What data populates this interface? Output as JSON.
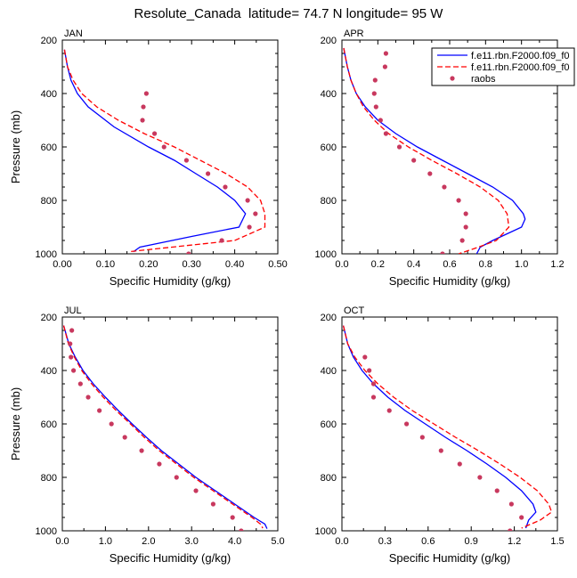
{
  "title": "Resolute_Canada  latitude= 74.7 N longitude= 95 W",
  "legend": {
    "entries": [
      {
        "label": "f.e11.rbn.F2000.f09_f0",
        "color": "#0000ff",
        "style": "solid"
      },
      {
        "label": "f.e11.rbn.F2000.f09_f0",
        "color": "#ff0000",
        "style": "dashed"
      },
      {
        "label": "raobs",
        "color": "#c8385e",
        "style": "marker"
      }
    ]
  },
  "chart_data": [
    {
      "type": "line",
      "panel": "JAN",
      "xlabel": "Specific Humidity (g/kg)",
      "ylabel": "Pressure (mb)",
      "xlim": [
        0,
        0.5
      ],
      "xticks": [
        0.0,
        0.1,
        0.2,
        0.3,
        0.4,
        0.5
      ],
      "xtick_labels": [
        "0.00",
        "0.10",
        "0.20",
        "0.30",
        "0.40",
        "0.50"
      ],
      "ylim": [
        200,
        1000
      ],
      "yticks": [
        200,
        400,
        600,
        800,
        1000
      ],
      "series": [
        {
          "name": "model1",
          "pressure": [
            236,
            300,
            350,
            400,
            450,
            525,
            600,
            650,
            700,
            750,
            800,
            850,
            900,
            935,
            975,
            992
          ],
          "values": [
            0.005,
            0.012,
            0.02,
            0.035,
            0.06,
            0.12,
            0.2,
            0.26,
            0.31,
            0.36,
            0.4,
            0.425,
            0.41,
            0.3,
            0.18,
            0.165
          ]
        },
        {
          "name": "model2",
          "pressure": [
            236,
            300,
            350,
            400,
            450,
            500,
            550,
            600,
            650,
            700,
            750,
            800,
            850,
            900,
            950,
            992
          ],
          "values": [
            0.005,
            0.012,
            0.025,
            0.045,
            0.08,
            0.13,
            0.19,
            0.26,
            0.32,
            0.38,
            0.43,
            0.46,
            0.47,
            0.47,
            0.4,
            0.155
          ]
        },
        {
          "name": "raobs",
          "pressure": [
            400,
            450,
            500,
            550,
            600,
            650,
            700,
            750,
            800,
            850,
            900,
            950,
            1000
          ],
          "values": [
            0.195,
            0.188,
            0.186,
            0.214,
            0.236,
            0.288,
            0.338,
            0.378,
            0.43,
            0.448,
            0.434,
            0.37,
            0.293
          ]
        }
      ]
    },
    {
      "type": "line",
      "panel": "APR",
      "xlabel": "Specific Humidity (g/kg)",
      "ylabel": "",
      "xlim": [
        0,
        1.2
      ],
      "xticks": [
        0.0,
        0.2,
        0.4,
        0.6,
        0.8,
        1.0,
        1.2
      ],
      "xtick_labels": [
        "0.0",
        "0.2",
        "0.4",
        "0.6",
        "0.8",
        "1.0",
        "1.2"
      ],
      "ylim": [
        200,
        1000
      ],
      "yticks": [
        200,
        400,
        600,
        800,
        1000
      ],
      "series": [
        {
          "name": "model1",
          "pressure": [
            230,
            300,
            350,
            400,
            450,
            500,
            550,
            600,
            650,
            700,
            750,
            800,
            850,
            870,
            900,
            950,
            975,
            1000
          ],
          "values": [
            0.01,
            0.03,
            0.05,
            0.08,
            0.13,
            0.2,
            0.3,
            0.42,
            0.56,
            0.7,
            0.84,
            0.95,
            1.01,
            1.02,
            1.0,
            0.84,
            0.77,
            0.75
          ]
        },
        {
          "name": "model2",
          "pressure": [
            230,
            300,
            350,
            400,
            450,
            500,
            550,
            600,
            650,
            700,
            750,
            800,
            850,
            900,
            950,
            975,
            1000
          ],
          "values": [
            0.01,
            0.03,
            0.05,
            0.08,
            0.12,
            0.18,
            0.26,
            0.37,
            0.5,
            0.64,
            0.77,
            0.87,
            0.92,
            0.93,
            0.86,
            0.76,
            0.65
          ]
        },
        {
          "name": "raobs",
          "pressure": [
            250,
            300,
            350,
            400,
            450,
            500,
            550,
            600,
            650,
            700,
            750,
            800,
            850,
            900,
            950,
            1000
          ],
          "values": [
            0.245,
            0.24,
            0.185,
            0.18,
            0.19,
            0.215,
            0.245,
            0.32,
            0.4,
            0.49,
            0.57,
            0.65,
            0.69,
            0.69,
            0.67,
            0.56
          ]
        }
      ]
    },
    {
      "type": "line",
      "panel": "JUL",
      "xlabel": "Specific Humidity (g/kg)",
      "ylabel": "Pressure (mb)",
      "xlim": [
        0,
        5
      ],
      "xticks": [
        0.0,
        1.0,
        2.0,
        3.0,
        4.0,
        5.0
      ],
      "xtick_labels": [
        "0.0",
        "1.0",
        "2.0",
        "3.0",
        "4.0",
        "5.0"
      ],
      "ylim": [
        200,
        1000
      ],
      "yticks": [
        200,
        400,
        600,
        800,
        1000
      ],
      "series": [
        {
          "name": "model1",
          "pressure": [
            232,
            300,
            350,
            400,
            450,
            500,
            550,
            600,
            650,
            700,
            750,
            800,
            850,
            900,
            950,
            975,
            992
          ],
          "values": [
            0.03,
            0.15,
            0.3,
            0.48,
            0.72,
            1.0,
            1.3,
            1.62,
            1.95,
            2.3,
            2.7,
            3.1,
            3.55,
            4.0,
            4.45,
            4.7,
            4.75
          ]
        },
        {
          "name": "model2",
          "pressure": [
            232,
            300,
            350,
            400,
            450,
            500,
            550,
            600,
            650,
            700,
            750,
            800,
            850,
            900,
            950,
            975,
            990
          ],
          "values": [
            0.03,
            0.14,
            0.28,
            0.45,
            0.68,
            0.95,
            1.25,
            1.58,
            1.9,
            2.25,
            2.65,
            3.05,
            3.5,
            3.95,
            4.4,
            4.6,
            4.65
          ]
        },
        {
          "name": "raobs",
          "pressure": [
            250,
            300,
            350,
            400,
            450,
            500,
            550,
            600,
            650,
            700,
            750,
            800,
            850,
            900,
            950,
            1000
          ],
          "values": [
            0.22,
            0.18,
            0.2,
            0.26,
            0.42,
            0.6,
            0.86,
            1.14,
            1.45,
            1.84,
            2.25,
            2.65,
            3.1,
            3.5,
            3.95,
            4.15
          ]
        }
      ]
    },
    {
      "type": "line",
      "panel": "OCT",
      "xlabel": "Specific Humidity (g/kg)",
      "ylabel": "",
      "xlim": [
        0,
        1.5
      ],
      "xticks": [
        0.0,
        0.3,
        0.6,
        0.9,
        1.2,
        1.5
      ],
      "xtick_labels": [
        "0.0",
        "0.3",
        "0.6",
        "0.9",
        "1.2",
        "1.5"
      ],
      "ylim": [
        200,
        1000
      ],
      "yticks": [
        200,
        400,
        600,
        800,
        1000
      ],
      "series": [
        {
          "name": "model1",
          "pressure": [
            232,
            300,
            350,
            400,
            450,
            500,
            550,
            600,
            650,
            700,
            750,
            800,
            850,
            900,
            930,
            960,
            990
          ],
          "values": [
            0.01,
            0.04,
            0.08,
            0.14,
            0.22,
            0.32,
            0.44,
            0.58,
            0.72,
            0.87,
            1.01,
            1.14,
            1.25,
            1.33,
            1.35,
            1.3,
            1.28
          ]
        },
        {
          "name": "model2",
          "pressure": [
            232,
            300,
            350,
            400,
            450,
            500,
            550,
            600,
            650,
            700,
            750,
            800,
            850,
            900,
            930,
            960,
            990
          ],
          "values": [
            0.01,
            0.04,
            0.09,
            0.16,
            0.25,
            0.36,
            0.49,
            0.64,
            0.79,
            0.95,
            1.1,
            1.24,
            1.36,
            1.44,
            1.46,
            1.38,
            1.25
          ]
        },
        {
          "name": "raobs",
          "pressure": [
            350,
            400,
            450,
            500,
            550,
            600,
            650,
            700,
            750,
            800,
            850,
            900,
            950,
            1000
          ],
          "values": [
            0.16,
            0.19,
            0.22,
            0.22,
            0.33,
            0.45,
            0.56,
            0.69,
            0.82,
            0.96,
            1.08,
            1.18,
            1.25,
            1.17
          ]
        }
      ]
    }
  ]
}
